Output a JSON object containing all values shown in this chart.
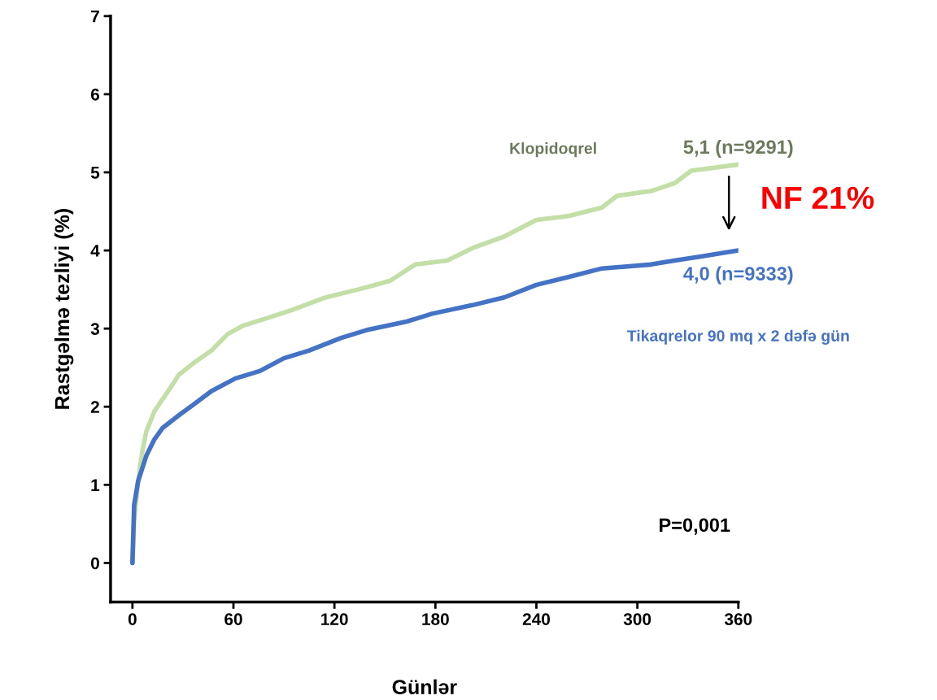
{
  "chart_data": {
    "type": "line",
    "ylabel": "Rastgəlmə tezliyi (%)",
    "xlabel": "Günlər",
    "xlim": [
      -13,
      360
    ],
    "ylim": [
      -0.5,
      7
    ],
    "xticks": [
      0,
      60,
      120,
      180,
      240,
      300,
      360
    ],
    "yticks": [
      0,
      1,
      2,
      3,
      4,
      5,
      6,
      7
    ],
    "grid": false,
    "legend": false,
    "marker": "none",
    "line_style": "solid",
    "series": [
      {
        "name": "Klopidoqrel",
        "color": "#c4dea8",
        "x": [
          0,
          1,
          3.4,
          5.8,
          8.2,
          13,
          18,
          22.8,
          27.6,
          37,
          47,
          56.6,
          66,
          81,
          95,
          115,
          134,
          153,
          168,
          187,
          202,
          221,
          240,
          259,
          279,
          288,
          308,
          322,
          332,
          342,
          360
        ],
        "values": [
          0,
          0.53,
          1.05,
          1.42,
          1.68,
          1.94,
          2.1,
          2.25,
          2.41,
          2.57,
          2.72,
          2.93,
          3.04,
          3.14,
          3.24,
          3.4,
          3.5,
          3.61,
          3.82,
          3.87,
          4.03,
          4.18,
          4.39,
          4.44,
          4.55,
          4.7,
          4.76,
          4.86,
          5.02,
          5.05,
          5.1
        ],
        "value_labels": [
          null,
          null,
          null,
          null,
          null,
          null,
          null,
          null,
          null,
          null,
          null,
          null,
          null,
          null,
          null,
          null,
          null,
          null,
          null,
          null,
          null,
          null,
          null,
          null,
          null,
          null,
          null,
          null,
          null,
          null,
          "5,1 (n=9291)"
        ]
      },
      {
        "name": "Tikaqrelor 90 mq x 2 dəfə gün",
        "color": "#4472c4",
        "x": [
          0,
          1,
          3.4,
          8.2,
          13,
          18,
          27.6,
          37,
          47,
          61,
          76,
          90,
          105,
          124,
          139,
          163,
          178,
          202,
          221,
          240,
          259,
          279,
          308,
          322,
          337,
          360
        ],
        "values": [
          0,
          0.74,
          1.05,
          1.37,
          1.58,
          1.73,
          1.89,
          2.04,
          2.2,
          2.36,
          2.46,
          2.62,
          2.72,
          2.88,
          2.98,
          3.09,
          3.19,
          3.3,
          3.4,
          3.56,
          3.66,
          3.77,
          3.82,
          3.87,
          3.92,
          4.0
        ],
        "value_labels": [
          null,
          null,
          null,
          null,
          null,
          null,
          null,
          null,
          null,
          null,
          null,
          null,
          null,
          null,
          null,
          null,
          null,
          null,
          null,
          null,
          null,
          null,
          null,
          null,
          null,
          "4,0 (n=9333)"
        ]
      }
    ],
    "annotations": [
      "NF 21%",
      "P=0,001"
    ]
  }
}
